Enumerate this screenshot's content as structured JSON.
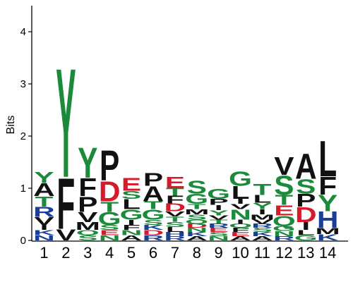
{
  "chart_data": {
    "type": "sequence-logo",
    "ylabel": "Bits",
    "ylim": [
      0,
      4.5
    ],
    "yticks": [
      "0",
      "1",
      "2",
      "3",
      "4"
    ],
    "colors": {
      "green": "#1b8a3a",
      "red": "#d7192c",
      "blue": "#1a3f96",
      "black": "#111111"
    },
    "positions": [
      {
        "label": "1",
        "stack": [
          [
            "N",
            0.1,
            "blue"
          ],
          [
            "K",
            0.1,
            "blue"
          ],
          [
            "I",
            0.1,
            "black"
          ],
          [
            "V",
            0.15,
            "black"
          ],
          [
            "R",
            0.2,
            "blue"
          ],
          [
            "T",
            0.2,
            "green"
          ],
          [
            "A",
            0.25,
            "black"
          ],
          [
            "Y",
            0.22,
            "green"
          ]
        ]
      },
      {
        "label": "2",
        "stack": [
          [
            "V",
            0.22,
            "black"
          ],
          [
            "F",
            1.0,
            "black"
          ],
          [
            "Y",
            2.15,
            "green"
          ]
        ]
      },
      {
        "label": "3",
        "stack": [
          [
            "S",
            0.1,
            "green"
          ],
          [
            "Q",
            0.1,
            "green"
          ],
          [
            "M",
            0.15,
            "black"
          ],
          [
            "V",
            0.2,
            "black"
          ],
          [
            "P",
            0.3,
            "black"
          ],
          [
            "F",
            0.35,
            "black"
          ],
          [
            "Y",
            0.6,
            "green"
          ]
        ]
      },
      {
        "label": "4",
        "stack": [
          [
            "N",
            0.1,
            "green"
          ],
          [
            "E",
            0.1,
            "red"
          ],
          [
            "S",
            0.1,
            "green"
          ],
          [
            "G",
            0.25,
            "green"
          ],
          [
            "T",
            0.2,
            "green"
          ],
          [
            "D",
            0.4,
            "red"
          ],
          [
            "P",
            0.6,
            "black"
          ]
        ]
      },
      {
        "label": "5",
        "stack": [
          [
            "A",
            0.1,
            "black"
          ],
          [
            "N",
            0.1,
            "green"
          ],
          [
            "F",
            0.1,
            "black"
          ],
          [
            "I",
            0.1,
            "black"
          ],
          [
            "G",
            0.2,
            "green"
          ],
          [
            "L",
            0.2,
            "black"
          ],
          [
            "S",
            0.15,
            "green"
          ],
          [
            "E",
            0.25,
            "red"
          ]
        ]
      },
      {
        "label": "6",
        "stack": [
          [
            "R",
            0.1,
            "blue"
          ],
          [
            "D",
            0.1,
            "red"
          ],
          [
            "K",
            0.1,
            "blue"
          ],
          [
            "S",
            0.1,
            "green"
          ],
          [
            "G",
            0.2,
            "green"
          ],
          [
            "T",
            0.15,
            "green"
          ],
          [
            "A",
            0.3,
            "black"
          ],
          [
            "P",
            0.25,
            "black"
          ]
        ]
      },
      {
        "label": "7",
        "stack": [
          [
            "R",
            0.08,
            "blue"
          ],
          [
            "H",
            0.08,
            "blue"
          ],
          [
            "L",
            0.1,
            "black"
          ],
          [
            "S",
            0.1,
            "green"
          ],
          [
            "T",
            0.1,
            "green"
          ],
          [
            "V",
            0.1,
            "black"
          ],
          [
            "D",
            0.15,
            "red"
          ],
          [
            "F",
            0.15,
            "black"
          ],
          [
            "T",
            0.15,
            "green"
          ],
          [
            "E",
            0.22,
            "red"
          ]
        ]
      },
      {
        "label": "8",
        "stack": [
          [
            "A",
            0.08,
            "black"
          ],
          [
            "K",
            0.08,
            "blue"
          ],
          [
            "N",
            0.08,
            "green"
          ],
          [
            "D",
            0.08,
            "red"
          ],
          [
            "Q",
            0.08,
            "green"
          ],
          [
            "S",
            0.1,
            "green"
          ],
          [
            "M",
            0.1,
            "black"
          ],
          [
            "T",
            0.1,
            "green"
          ],
          [
            "G",
            0.2,
            "green"
          ],
          [
            "S",
            0.25,
            "green"
          ]
        ]
      },
      {
        "label": "9",
        "stack": [
          [
            "N",
            0.08,
            "green"
          ],
          [
            "S",
            0.08,
            "green"
          ],
          [
            "E",
            0.08,
            "red"
          ],
          [
            "R",
            0.08,
            "blue"
          ],
          [
            "T",
            0.08,
            "green"
          ],
          [
            "V",
            0.08,
            "black"
          ],
          [
            "Y",
            0.1,
            "green"
          ],
          [
            "I",
            0.1,
            "black"
          ],
          [
            "P",
            0.12,
            "black"
          ],
          [
            "G",
            0.2,
            "green"
          ]
        ]
      },
      {
        "label": "10",
        "stack": [
          [
            "A",
            0.08,
            "black"
          ],
          [
            "E",
            0.08,
            "red"
          ],
          [
            "F",
            0.08,
            "black"
          ],
          [
            "Q",
            0.08,
            "green"
          ],
          [
            "I",
            0.08,
            "black"
          ],
          [
            "N",
            0.2,
            "green"
          ],
          [
            "V",
            0.1,
            "black"
          ],
          [
            "I",
            0.1,
            "black"
          ],
          [
            "L",
            0.25,
            "black"
          ],
          [
            "G",
            0.28,
            "green"
          ]
        ]
      },
      {
        "label": "11",
        "stack": [
          [
            "A",
            0.08,
            "black"
          ],
          [
            "K",
            0.08,
            "blue"
          ],
          [
            "S",
            0.08,
            "green"
          ],
          [
            "R",
            0.08,
            "blue"
          ],
          [
            "V",
            0.08,
            "black"
          ],
          [
            "M",
            0.1,
            "black"
          ],
          [
            "I",
            0.1,
            "black"
          ],
          [
            "Y",
            0.12,
            "green"
          ],
          [
            "L",
            0.15,
            "black"
          ],
          [
            "T",
            0.22,
            "green"
          ]
        ]
      },
      {
        "label": "12",
        "stack": [
          [
            "R",
            0.08,
            "blue"
          ],
          [
            "N",
            0.1,
            "green"
          ],
          [
            "G",
            0.1,
            "green"
          ],
          [
            "Q",
            0.2,
            "green"
          ],
          [
            "E",
            0.2,
            "red"
          ],
          [
            "T",
            0.2,
            "green"
          ],
          [
            "S",
            0.38,
            "green"
          ],
          [
            "V",
            0.35,
            "black"
          ]
        ]
      },
      {
        "label": "13",
        "stack": [
          [
            "G",
            0.1,
            "green"
          ],
          [
            "L",
            0.1,
            "black"
          ],
          [
            "I",
            0.15,
            "black"
          ],
          [
            "D",
            0.3,
            "red"
          ],
          [
            "P",
            0.25,
            "black"
          ],
          [
            "S",
            0.28,
            "green"
          ],
          [
            "A",
            0.5,
            "black"
          ]
        ]
      },
      {
        "label": "14",
        "stack": [
          [
            "K",
            0.12,
            "blue"
          ],
          [
            "M",
            0.12,
            "black"
          ],
          [
            "H",
            0.32,
            "blue"
          ],
          [
            "Y",
            0.32,
            "green"
          ],
          [
            "F",
            0.35,
            "black"
          ],
          [
            "L",
            0.7,
            "black"
          ]
        ]
      }
    ]
  }
}
